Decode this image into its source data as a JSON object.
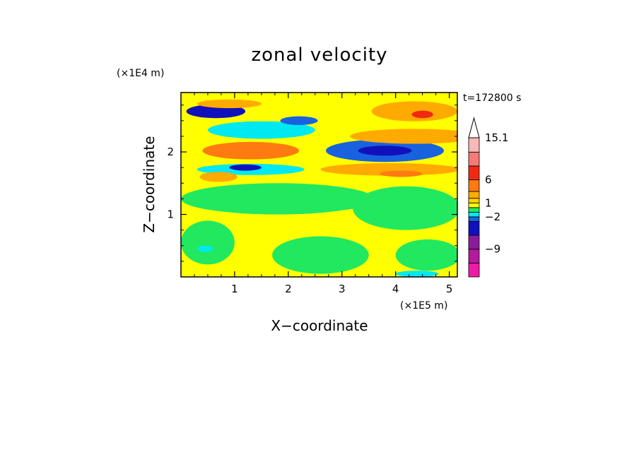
{
  "chart_data": {
    "type": "heatmap",
    "title": "zonal velocity",
    "xlabel": "X−coordinate",
    "ylabel": "Z−coordinate",
    "x_unit": "(×1E5 m)",
    "y_unit": "(×1E4 m)",
    "time_label": "t=172800 s",
    "xlim": [
      0,
      5.15
    ],
    "ylim": [
      0,
      2.95
    ],
    "x_ticks": [
      1,
      2,
      3,
      4,
      5
    ],
    "x_tick_labels": [
      "1",
      "2",
      "3",
      "4",
      "5"
    ],
    "y_ticks": [
      1,
      2
    ],
    "y_tick_labels": [
      "1",
      "2"
    ],
    "background_value": 0.5,
    "colorbar": {
      "bins": [
        {
          "lo": -15,
          "hi": -12,
          "color": "#ee1ba4"
        },
        {
          "lo": -12,
          "hi": -9,
          "color": "#b41a9c"
        },
        {
          "lo": -9,
          "hi": -6,
          "color": "#8a1c99"
        },
        {
          "lo": -6,
          "hi": -3,
          "color": "#1111bb"
        },
        {
          "lo": -3,
          "hi": -2,
          "color": "#1862e0"
        },
        {
          "lo": -2,
          "hi": -1,
          "color": "#00e8f0"
        },
        {
          "lo": -1,
          "hi": 0,
          "color": "#22e860"
        },
        {
          "lo": 0,
          "hi": 1,
          "color": "#ffff00"
        },
        {
          "lo": 1,
          "hi": 2,
          "color": "#ffd200"
        },
        {
          "lo": 2,
          "hi": 3.5,
          "color": "#ffaa00"
        },
        {
          "lo": 3.5,
          "hi": 6,
          "color": "#ff7a10"
        },
        {
          "lo": 6,
          "hi": 9,
          "color": "#f02a10"
        },
        {
          "lo": 9,
          "hi": 12,
          "color": "#f47a78"
        },
        {
          "lo": 12,
          "hi": 15.1,
          "color": "#f8b8b8"
        }
      ],
      "overflow_color": "#ffffff",
      "labels": [
        {
          "value": 15.1,
          "text": "15.1"
        },
        {
          "value": 6,
          "text": "6"
        },
        {
          "value": 1,
          "text": "1"
        },
        {
          "value": -2,
          "text": "−2"
        },
        {
          "value": -9,
          "text": "−9"
        }
      ]
    },
    "features": [
      {
        "x": 0.65,
        "z": 2.65,
        "rx": 0.55,
        "rz": 0.11,
        "value": -3.5
      },
      {
        "x": 1.5,
        "z": 2.35,
        "rx": 1.0,
        "rz": 0.14,
        "value": -1.5
      },
      {
        "x": 2.2,
        "z": 2.5,
        "rx": 0.35,
        "rz": 0.07,
        "value": -3
      },
      {
        "x": 0.9,
        "z": 2.77,
        "rx": 0.6,
        "rz": 0.07,
        "value": 2
      },
      {
        "x": 4.35,
        "z": 2.65,
        "rx": 0.8,
        "rz": 0.16,
        "value": 3
      },
      {
        "x": 4.5,
        "z": 2.6,
        "rx": 0.2,
        "rz": 0.06,
        "value": 6
      },
      {
        "x": 1.3,
        "z": 2.02,
        "rx": 0.9,
        "rz": 0.14,
        "value": 4.5
      },
      {
        "x": 3.8,
        "z": 2.02,
        "rx": 1.1,
        "rz": 0.18,
        "value": -2.5
      },
      {
        "x": 3.8,
        "z": 2.02,
        "rx": 0.5,
        "rz": 0.08,
        "value": -5
      },
      {
        "x": 4.35,
        "z": 2.25,
        "rx": 1.2,
        "rz": 0.12,
        "value": 2.5
      },
      {
        "x": 3.9,
        "z": 1.72,
        "rx": 1.3,
        "rz": 0.1,
        "value": 3
      },
      {
        "x": 4.1,
        "z": 1.65,
        "rx": 0.4,
        "rz": 0.05,
        "value": 5
      },
      {
        "x": 1.3,
        "z": 1.72,
        "rx": 1.0,
        "rz": 0.09,
        "value": -1.5
      },
      {
        "x": 1.2,
        "z": 1.75,
        "rx": 0.3,
        "rz": 0.05,
        "value": -4
      },
      {
        "x": 0.7,
        "z": 1.6,
        "rx": 0.35,
        "rz": 0.08,
        "value": 2
      },
      {
        "x": 1.8,
        "z": 1.25,
        "rx": 1.8,
        "rz": 0.25,
        "value": -0.6
      },
      {
        "x": 4.2,
        "z": 1.1,
        "rx": 1.0,
        "rz": 0.35,
        "value": -0.6
      },
      {
        "x": 0.5,
        "z": 0.55,
        "rx": 0.5,
        "rz": 0.35,
        "value": -0.6
      },
      {
        "x": 2.6,
        "z": 0.35,
        "rx": 0.9,
        "rz": 0.3,
        "value": -0.6
      },
      {
        "x": 4.6,
        "z": 0.35,
        "rx": 0.6,
        "rz": 0.25,
        "value": -0.6
      },
      {
        "x": 0.45,
        "z": 0.45,
        "rx": 0.15,
        "rz": 0.05,
        "value": -1.5
      },
      {
        "x": 4.4,
        "z": 0.05,
        "rx": 0.4,
        "rz": 0.05,
        "value": -1.5
      }
    ]
  }
}
